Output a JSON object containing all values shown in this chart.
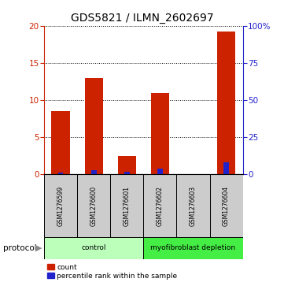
{
  "title": "GDS5821 / ILMN_2602697",
  "samples": [
    "GSM1276599",
    "GSM1276600",
    "GSM1276601",
    "GSM1276602",
    "GSM1276603",
    "GSM1276604"
  ],
  "count_values": [
    8.5,
    13.0,
    2.5,
    11.0,
    0.0,
    19.2
  ],
  "percentile_values": [
    1.1,
    2.9,
    1.6,
    4.1,
    0.0,
    8.3
  ],
  "ylim_left": [
    0,
    20
  ],
  "ylim_right": [
    0,
    100
  ],
  "yticks_left": [
    0,
    5,
    10,
    15,
    20
  ],
  "yticks_right": [
    0,
    25,
    50,
    75,
    100
  ],
  "yticklabels_right": [
    "0",
    "25",
    "50",
    "75",
    "100%"
  ],
  "bar_color": "#cc2200",
  "percentile_color": "#2222cc",
  "groups": [
    {
      "label": "control",
      "indices": [
        0,
        1,
        2
      ],
      "color": "#bbffbb"
    },
    {
      "label": "myofibroblast depletion",
      "indices": [
        3,
        4,
        5
      ],
      "color": "#44ee44"
    }
  ],
  "protocol_label": "protocol",
  "legend_count_label": "count",
  "legend_percentile_label": "percentile rank within the sample",
  "bar_width": 0.55,
  "sample_bg_color": "#cccccc",
  "title_fontsize": 10,
  "tick_fontsize": 7.5
}
